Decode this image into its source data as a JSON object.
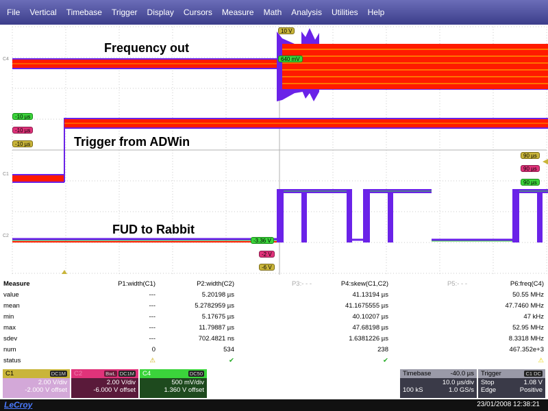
{
  "menu": [
    "File",
    "Vertical",
    "Timebase",
    "Trigger",
    "Display",
    "Cursors",
    "Measure",
    "Math",
    "Analysis",
    "Utilities",
    "Help"
  ],
  "traces": {
    "c4_label": "Frequency out",
    "c1_label": "Trigger from ADWin",
    "c2_label": "FUD to Rabbit",
    "c4_tag": "C4",
    "c1_tag": "C1",
    "c2_tag": "C2"
  },
  "markers": {
    "c4_top": "10 V",
    "c4_level": "640 mV",
    "left_green": "-10 µs",
    "left_red": "-10 µs",
    "left_yellow": "-10 µs",
    "right_yellow": "90 µs",
    "right_red": "90 µs",
    "right_green": "90 µs",
    "c2_green": "-3.36 V",
    "c2_red": "-2 V",
    "c2_yellow": "-6 V"
  },
  "colors": {
    "c1": "#c9b53a",
    "c2": "#e0337a",
    "c4": "#3bd43b",
    "trace_red": "#ff1a00",
    "trace_purple": "#6a22e8",
    "trace_orange": "#ff9a00"
  },
  "measure": {
    "headers": [
      "Measure",
      "P1:width(C1)",
      "P2:width(C2)",
      "P3:- - -",
      "P4:skew(C1,C2)",
      "P5:- - -",
      "P6:freq(C4)"
    ],
    "rows": [
      {
        "label": "value",
        "p1": "---",
        "p2": "5.20198 µs",
        "p4": "41.13194 µs",
        "p6": "50.55 MHz"
      },
      {
        "label": "mean",
        "p1": "---",
        "p2": "5.2782959 µs",
        "p4": "41.1675555 µs",
        "p6": "47.7460 MHz"
      },
      {
        "label": "min",
        "p1": "---",
        "p2": "5.17675 µs",
        "p4": "40.10207 µs",
        "p6": "47 kHz"
      },
      {
        "label": "max",
        "p1": "---",
        "p2": "11.79887 µs",
        "p4": "47.68198 µs",
        "p6": "52.95 MHz"
      },
      {
        "label": "sdev",
        "p1": "---",
        "p2": "702.4821 ns",
        "p4": "1.6381226 µs",
        "p6": "8.3318 MHz"
      },
      {
        "label": "num",
        "p1": "0",
        "p2": "534",
        "p4": "238",
        "p6": "467.352e+3"
      },
      {
        "label": "status",
        "p1": "⚠",
        "p2": "✔",
        "p4": "✔",
        "p6": "⚠"
      }
    ]
  },
  "channels": [
    {
      "name": "C1",
      "badge": "DC1M",
      "vdiv": "2.00 V/div",
      "offset": "-2.000 V offset"
    },
    {
      "name": "C2",
      "badge": "DC1M",
      "bwl": "BwL",
      "vdiv": "2.00 V/div",
      "offset": "-6.000 V offset"
    },
    {
      "name": "C4",
      "badge": "DC50",
      "vdiv": "500 mV/div",
      "offset": "1.360 V offset"
    }
  ],
  "timebase": {
    "title": "Timebase",
    "delay": "-40.0 µs",
    "tdiv": "10.0 µs/div",
    "samples": "100 kS",
    "rate": "1.0 GS/s"
  },
  "trigger": {
    "title": "Trigger",
    "badge": "C1 DC",
    "mode": "Stop",
    "level": "1.08 V",
    "type": "Edge",
    "slope": "Positive"
  },
  "status": {
    "brand": "LeCroy",
    "datetime": "23/01/2008 12:38:21"
  }
}
